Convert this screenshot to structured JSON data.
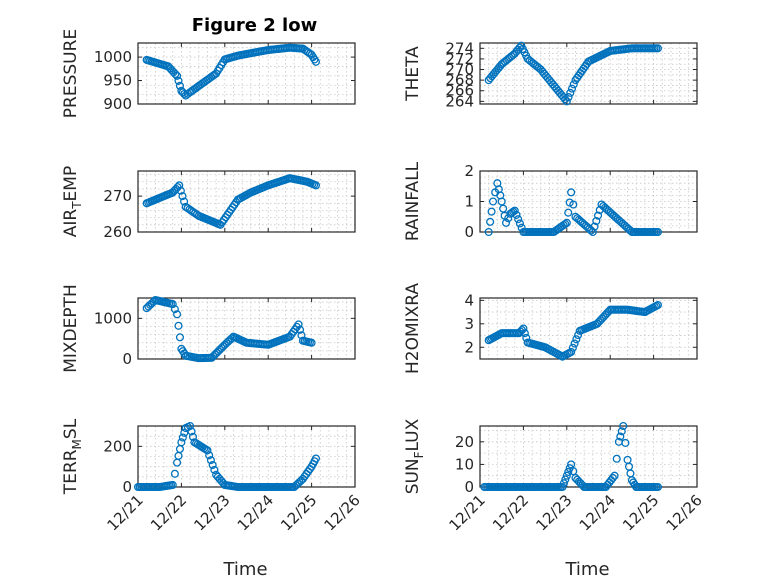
{
  "chart_data": [
    {
      "type": "scatter",
      "title": "Figure 2 low",
      "ylabel": "PRESSURE",
      "xlabel": "",
      "ylim": [
        900,
        1030
      ],
      "yticks": [
        "900",
        "950",
        "1000"
      ],
      "yticks_values": [
        900,
        950,
        1000
      ],
      "marker_color": "#0072BD",
      "series": [
        {
          "points": [
            [
              21.2,
              994
            ],
            [
              21.7,
              980
            ],
            [
              21.9,
              960
            ],
            [
              22.0,
              928
            ],
            [
              22.1,
              918
            ],
            [
              22.2,
              925
            ],
            [
              22.5,
              945
            ],
            [
              22.8,
              965
            ],
            [
              23.0,
              995
            ],
            [
              23.3,
              1003
            ],
            [
              23.7,
              1010
            ],
            [
              24.0,
              1015
            ],
            [
              24.5,
              1020
            ],
            [
              24.8,
              1018
            ],
            [
              25.0,
              1005
            ],
            [
              25.1,
              990
            ]
          ]
        }
      ]
    },
    {
      "type": "scatter",
      "title": "",
      "ylabel": "THETA",
      "xlabel": "",
      "ylim": [
        263.5,
        275
      ],
      "yticks": [
        "264",
        "266",
        "268",
        "270",
        "272",
        "274"
      ],
      "yticks_values": [
        264,
        266,
        268,
        270,
        272,
        274
      ],
      "marker_color": "#0072BD",
      "series": [
        {
          "points": [
            [
              21.2,
              268
            ],
            [
              21.5,
              271
            ],
            [
              21.8,
              273
            ],
            [
              21.95,
              274.5
            ],
            [
              22.1,
              272
            ],
            [
              22.4,
              270
            ],
            [
              22.8,
              266
            ],
            [
              23.0,
              264
            ],
            [
              23.2,
              268
            ],
            [
              23.5,
              271.5
            ],
            [
              24.0,
              273.5
            ],
            [
              24.5,
              274
            ],
            [
              25.1,
              274
            ]
          ]
        }
      ]
    },
    {
      "type": "scatter",
      "title": "",
      "ylabel": "AIR_TEMP",
      "ylabel_parts": [
        "AIR",
        "T",
        "EMP"
      ],
      "xlabel": "",
      "ylim": [
        260,
        277
      ],
      "yticks": [
        "260",
        "270"
      ],
      "yticks_values": [
        260,
        270
      ],
      "marker_color": "#0072BD",
      "series": [
        {
          "points": [
            [
              21.2,
              268
            ],
            [
              21.5,
              269.5
            ],
            [
              21.8,
              271
            ],
            [
              21.95,
              273
            ],
            [
              22.1,
              267
            ],
            [
              22.4,
              264.5
            ],
            [
              22.9,
              262
            ],
            [
              23.3,
              269
            ],
            [
              23.6,
              271
            ],
            [
              24.0,
              273
            ],
            [
              24.5,
              275
            ],
            [
              24.9,
              274
            ],
            [
              25.1,
              273
            ]
          ]
        }
      ]
    },
    {
      "type": "scatter",
      "title": "",
      "ylabel": "RAINFALL",
      "xlabel": "",
      "ylim": [
        0,
        2
      ],
      "yticks": [
        "0",
        "1",
        "2"
      ],
      "yticks_values": [
        0,
        1,
        2
      ],
      "marker_color": "#0072BD",
      "series": [
        {
          "points": [
            [
              21.2,
              0
            ],
            [
              21.3,
              1.0
            ],
            [
              21.4,
              1.6
            ],
            [
              21.5,
              1.0
            ],
            [
              21.6,
              0.3
            ],
            [
              21.7,
              0.6
            ],
            [
              21.8,
              0.7
            ],
            [
              22.0,
              0
            ],
            [
              22.7,
              0
            ],
            [
              23.0,
              0.3
            ],
            [
              23.1,
              1.3
            ],
            [
              23.2,
              0.5
            ],
            [
              23.6,
              0
            ],
            [
              23.8,
              0.9
            ],
            [
              24.5,
              0
            ],
            [
              25.1,
              0
            ]
          ]
        }
      ]
    },
    {
      "type": "scatter",
      "title": "",
      "ylabel": "MIXDEPTH",
      "xlabel": "",
      "ylim": [
        0,
        1500
      ],
      "yticks": [
        "0",
        "1000"
      ],
      "yticks_values": [
        0,
        1000
      ],
      "marker_color": "#0072BD",
      "series": [
        {
          "points": [
            [
              21.2,
              1250
            ],
            [
              21.4,
              1450
            ],
            [
              21.6,
              1400
            ],
            [
              21.8,
              1350
            ],
            [
              21.9,
              1100
            ],
            [
              22.0,
              250
            ],
            [
              22.1,
              80
            ],
            [
              22.4,
              20
            ],
            [
              22.7,
              30
            ],
            [
              23.0,
              350
            ],
            [
              23.2,
              550
            ],
            [
              23.5,
              400
            ],
            [
              24.0,
              350
            ],
            [
              24.5,
              550
            ],
            [
              24.7,
              850
            ],
            [
              24.8,
              450
            ],
            [
              25.0,
              400
            ]
          ]
        }
      ]
    },
    {
      "type": "scatter",
      "title": "",
      "ylabel": "H2OMIXRA",
      "xlabel": "",
      "ylim": [
        1.5,
        4.1
      ],
      "yticks": [
        "2",
        "3",
        "4"
      ],
      "yticks_values": [
        2,
        3,
        4
      ],
      "marker_color": "#0072BD",
      "series": [
        {
          "points": [
            [
              21.2,
              2.3
            ],
            [
              21.5,
              2.6
            ],
            [
              21.9,
              2.6
            ],
            [
              22.0,
              2.8
            ],
            [
              22.1,
              2.2
            ],
            [
              22.5,
              2.0
            ],
            [
              22.9,
              1.6
            ],
            [
              23.1,
              1.8
            ],
            [
              23.3,
              2.7
            ],
            [
              23.7,
              3.0
            ],
            [
              24.0,
              3.6
            ],
            [
              24.4,
              3.6
            ],
            [
              24.8,
              3.5
            ],
            [
              25.1,
              3.8
            ]
          ]
        }
      ]
    },
    {
      "type": "scatter",
      "title": "",
      "ylabel": "TERR_MSL",
      "ylabel_parts": [
        "TERR",
        "M",
        "SL"
      ],
      "xlabel": "Time",
      "ylim": [
        0,
        300
      ],
      "yticks": [
        "0",
        "200"
      ],
      "yticks_values": [
        0,
        200
      ],
      "xticks": [
        "12/21",
        "12/22",
        "12/23",
        "12/24",
        "12/25",
        "12/26"
      ],
      "xticks_values": [
        21,
        22,
        23,
        24,
        25,
        26
      ],
      "marker_color": "#0072BD",
      "series": [
        {
          "points": [
            [
              21.0,
              0
            ],
            [
              21.5,
              0
            ],
            [
              21.8,
              10
            ],
            [
              21.9,
              120
            ],
            [
              22.0,
              220
            ],
            [
              22.1,
              290
            ],
            [
              22.2,
              300
            ],
            [
              22.3,
              220
            ],
            [
              22.6,
              180
            ],
            [
              22.8,
              60
            ],
            [
              23.0,
              10
            ],
            [
              23.3,
              0
            ],
            [
              24.0,
              0
            ],
            [
              24.6,
              0
            ],
            [
              24.8,
              40
            ],
            [
              25.0,
              100
            ],
            [
              25.1,
              140
            ]
          ]
        }
      ]
    },
    {
      "type": "scatter",
      "title": "",
      "ylabel": "SUN_FLUX",
      "ylabel_parts": [
        "SUN",
        "F",
        "LUX"
      ],
      "xlabel": "Time",
      "ylim": [
        0,
        27
      ],
      "yticks": [
        "0",
        "10",
        "20"
      ],
      "yticks_values": [
        0,
        10,
        20
      ],
      "xticks": [
        "12/21",
        "12/22",
        "12/23",
        "12/24",
        "12/25",
        "12/26"
      ],
      "xticks_values": [
        21,
        22,
        23,
        24,
        25,
        26
      ],
      "marker_color": "#0072BD",
      "series": [
        {
          "points": [
            [
              21.1,
              0
            ],
            [
              22.0,
              0
            ],
            [
              22.9,
              0
            ],
            [
              23.0,
              5
            ],
            [
              23.1,
              10
            ],
            [
              23.2,
              4
            ],
            [
              23.4,
              0
            ],
            [
              23.9,
              0
            ],
            [
              24.1,
              5
            ],
            [
              24.2,
              20
            ],
            [
              24.3,
              27
            ],
            [
              24.4,
              12
            ],
            [
              24.5,
              3
            ],
            [
              24.6,
              0
            ],
            [
              25.1,
              0
            ]
          ]
        }
      ]
    }
  ]
}
